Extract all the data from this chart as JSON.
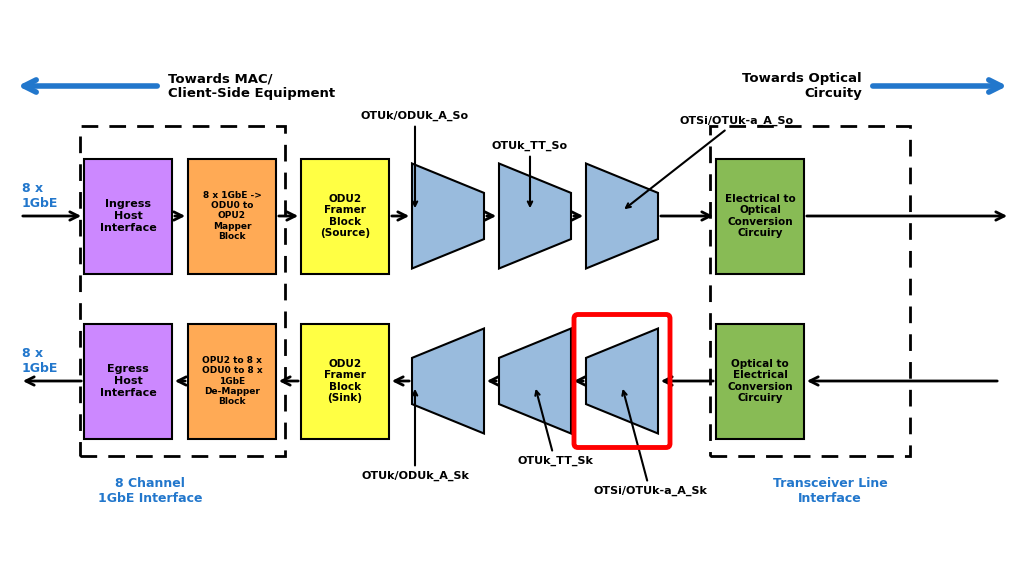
{
  "bg_color": "#ffffff",
  "colors": {
    "purple": "#CC88FF",
    "orange": "#FFAA55",
    "yellow": "#FFFF44",
    "blue_tri": "#99BBDD",
    "green": "#88BB55",
    "arrow_blue": "#2277CC",
    "red_highlight": "#FF0000"
  },
  "top_arrow_text_left": "Towards MAC/\nClient-Side Equipment",
  "top_arrow_text_right": "Towards Optical\nCircuity",
  "label_8x_top": "8 x\n1GbE",
  "label_8x_bot": "8 x\n1GbE",
  "label_8ch": "8 Channel\n1GbE Interface",
  "label_transceiver": "Transceiver Line\nInterface",
  "ingress_text": "Ingress\nHost\nInterface",
  "egress_text": "Egress\nHost\nInterface",
  "mapper_text": "8 x 1GbE ->\nODU0 to\nOPU2\nMapper\nBlock",
  "demapper_text": "OPU2 to 8 x\nODU0 to 8 x\n1GbE\nDe-Mapper\nBlock",
  "framer_src_text": "ODU2\nFramer\nBlock\n(Source)",
  "framer_snk_text": "ODU2\nFramer\nBlock\n(Sink)",
  "elec_opt_text": "Electrical to\nOptical\nConversion\nCircuiry",
  "opt_elec_text": "Optical to\nElectrical\nConversion\nCircuiry",
  "label_OTUk_ODUk_So": "OTUk/ODUk_A_So",
  "label_OTUk_ODUk_Sk": "OTUk/ODUk_A_Sk",
  "label_OTUk_TT_So": "OTUk_TT_So",
  "label_OTUk_TT_Sk": "OTUk_TT_Sk",
  "label_OTSi_So": "OTSi/OTUk-a_A_So",
  "label_OTSi_Sk": "OTSi/OTUk-a_A_Sk"
}
